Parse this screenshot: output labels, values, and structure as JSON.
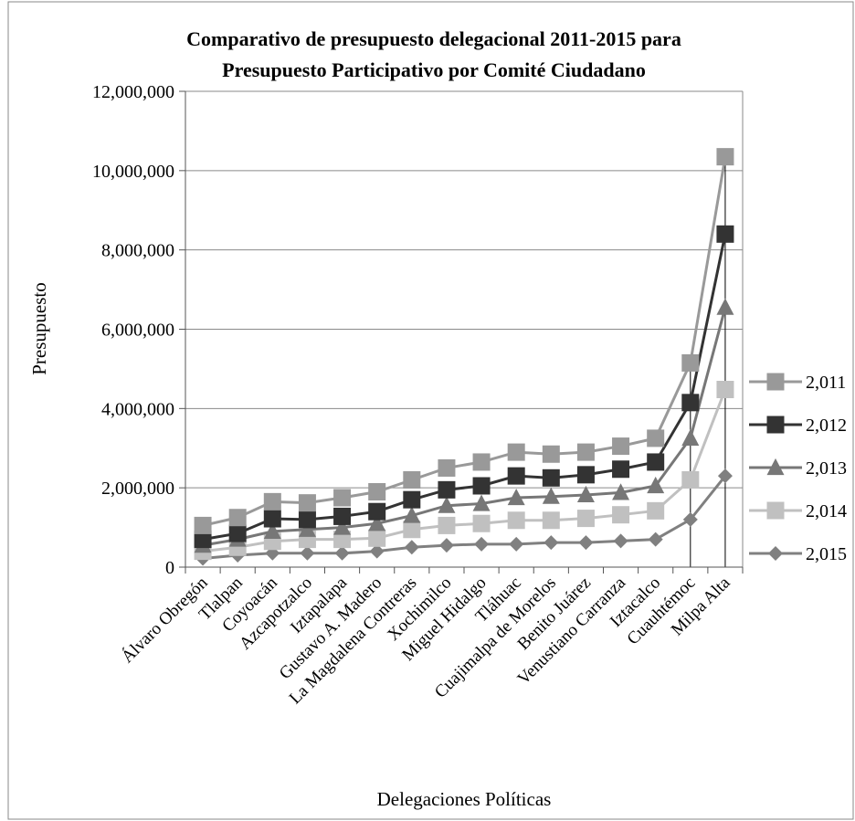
{
  "chart_data": {
    "type": "line",
    "title": "Comparativo de presupuesto delegacional 2011-2015 para",
    "subtitle": "Presupuesto Participativo por Comité Ciudadano",
    "xlabel": "Delegaciones Políticas",
    "ylabel": "Presupuesto",
    "ylim": [
      0,
      12000000
    ],
    "y_ticks": [
      {
        "value": 0,
        "label": "0"
      },
      {
        "value": 2000000,
        "label": "2,000,000"
      },
      {
        "value": 4000000,
        "label": "4,000,000"
      },
      {
        "value": 6000000,
        "label": "6,000,000"
      },
      {
        "value": 8000000,
        "label": "8,000,000"
      },
      {
        "value": 10000000,
        "label": "10,000,000"
      },
      {
        "value": 12000000,
        "label": "12,000,000"
      }
    ],
    "grid": true,
    "legend_position": "right",
    "categories": [
      "Álvaro Obregón",
      "Tlalpan",
      "Coyoacán",
      "Azcapotzalco",
      "Iztapalapa",
      "Gustavo A. Madero",
      "La Magdalena Contreras",
      "Xochimilco",
      "Miguel Hidalgo",
      "Tláhuac",
      "Cuajimalpa de Morelos",
      "Benito Juárez",
      "Venustiano Carranza",
      "Iztacalco",
      "Cuauhtémoc",
      "Milpa Alta"
    ],
    "series": [
      {
        "name": "2,011",
        "marker": "square",
        "color": "#999999",
        "values": [
          1050000,
          1250000,
          1650000,
          1620000,
          1750000,
          1900000,
          2200000,
          2500000,
          2650000,
          2900000,
          2850000,
          2900000,
          3050000,
          3250000,
          5150000,
          10350000
        ]
      },
      {
        "name": "2,012",
        "marker": "square",
        "color": "#333333",
        "values": [
          700000,
          850000,
          1220000,
          1200000,
          1280000,
          1400000,
          1700000,
          1950000,
          2050000,
          2300000,
          2250000,
          2330000,
          2470000,
          2650000,
          4150000,
          8400000
        ]
      },
      {
        "name": "2,013",
        "marker": "triangle",
        "color": "#777777",
        "values": [
          550000,
          700000,
          900000,
          950000,
          1000000,
          1100000,
          1300000,
          1550000,
          1600000,
          1750000,
          1780000,
          1820000,
          1880000,
          2050000,
          3250000,
          6550000
        ]
      },
      {
        "name": "2,014",
        "marker": "square",
        "color": "#c0c0c0",
        "values": [
          400000,
          500000,
          650000,
          700000,
          700000,
          730000,
          950000,
          1050000,
          1100000,
          1180000,
          1180000,
          1230000,
          1320000,
          1420000,
          2200000,
          4480000
        ]
      },
      {
        "name": "2,015",
        "marker": "diamond",
        "color": "#808080",
        "values": [
          220000,
          300000,
          350000,
          350000,
          350000,
          400000,
          500000,
          550000,
          580000,
          580000,
          620000,
          620000,
          660000,
          700000,
          1200000,
          2300000
        ]
      }
    ]
  }
}
